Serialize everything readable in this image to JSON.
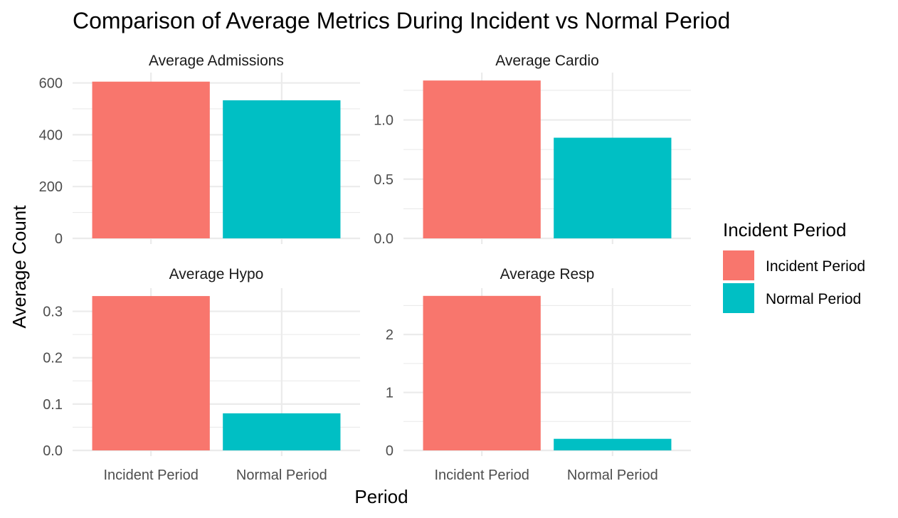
{
  "chart_data": {
    "type": "bar",
    "title": "Comparison of Average Metrics During Incident vs Normal Period",
    "xlabel": "Period",
    "ylabel": "Average Count",
    "categories": [
      "Incident Period",
      "Normal Period"
    ],
    "legend": {
      "title": "Incident Period",
      "placement": "right",
      "entries": [
        {
          "label": "Incident Period",
          "color": "#F8766D"
        },
        {
          "label": "Normal Period",
          "color": "#00BFC4"
        }
      ]
    },
    "grid": true,
    "panels": [
      {
        "title": "Average Admissions",
        "values": [
          605,
          533
        ],
        "ylim": [
          0,
          640
        ],
        "yticks": [
          0,
          200,
          400,
          600
        ],
        "ytick_labels": [
          "0",
          "200",
          "400",
          "600"
        ]
      },
      {
        "title": "Average Cardio",
        "values": [
          1.333,
          0.85
        ],
        "ylim": [
          0,
          1.4
        ],
        "yticks": [
          0,
          0.5,
          1.0
        ],
        "ytick_labels": [
          "0.0",
          "0.5",
          "1.0"
        ]
      },
      {
        "title": "Average Hypo",
        "values": [
          0.333,
          0.08
        ],
        "ylim": [
          0,
          0.35
        ],
        "yticks": [
          0,
          0.1,
          0.2,
          0.3
        ],
        "ytick_labels": [
          "0.0",
          "0.1",
          "0.2",
          "0.3"
        ]
      },
      {
        "title": "Average Resp",
        "values": [
          2.667,
          0.2
        ],
        "ylim": [
          0,
          2.8
        ],
        "yticks": [
          0,
          1,
          2
        ],
        "ytick_labels": [
          "0",
          "1",
          "2"
        ]
      }
    ]
  }
}
